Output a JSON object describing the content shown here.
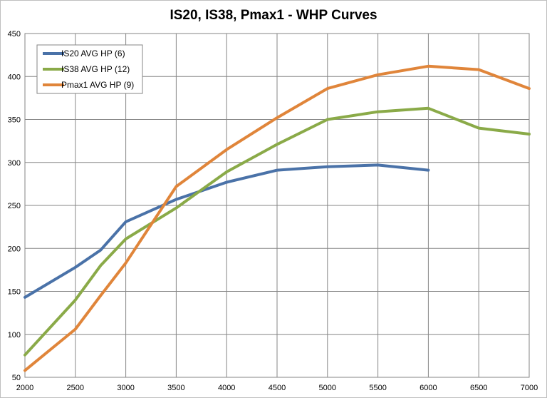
{
  "chart_data": {
    "type": "line",
    "title": "IS20, IS38, Pmax1 - WHP Curves",
    "xlabel": "",
    "ylabel": "",
    "xlim": [
      2000,
      7000
    ],
    "ylim": [
      50,
      450
    ],
    "x_ticks": [
      "2000",
      "2500",
      "3000",
      "3500",
      "4000",
      "4500",
      "5000",
      "5500",
      "6000",
      "6500",
      "7000"
    ],
    "y_ticks": [
      "50",
      "100",
      "150",
      "200",
      "250",
      "300",
      "350",
      "400",
      "450"
    ],
    "grid": true,
    "legend_position": "top-left",
    "series": [
      {
        "name": "IS20 AVG HP (6)",
        "color": "#4a72a8",
        "x": [
          2000,
          2500,
          2750,
          3000,
          3500,
          4000,
          4500,
          5000,
          5500,
          6000
        ],
        "y": [
          143,
          178,
          198,
          231,
          257,
          277,
          291,
          295,
          297,
          291
        ]
      },
      {
        "name": "IS38 AVG HP (12)",
        "color": "#8aaa48",
        "x": [
          2000,
          2500,
          2750,
          3000,
          3500,
          3750,
          4000,
          4500,
          5000,
          5500,
          6000,
          6500,
          7000
        ],
        "y": [
          76,
          140,
          180,
          211,
          247,
          268,
          289,
          321,
          350,
          359,
          363,
          340,
          333
        ]
      },
      {
        "name": "Pmax1 AVG HP (9)",
        "color": "#e0853a",
        "x": [
          2000,
          2500,
          2750,
          3000,
          3500,
          4000,
          4500,
          5000,
          5500,
          6000,
          6500,
          7000
        ],
        "y": [
          58,
          106,
          145,
          183,
          272,
          315,
          352,
          386,
          402,
          412,
          408,
          386
        ]
      }
    ]
  }
}
